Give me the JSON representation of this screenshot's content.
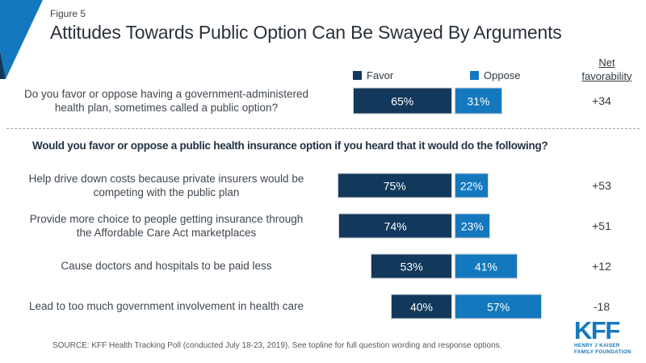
{
  "figure_label": "Figure 5",
  "title": "Attitudes Towards Public Option Can Be Swayed By Arguments",
  "legend": {
    "favor": "Favor",
    "oppose": "Oppose"
  },
  "net_header": {
    "line1": "Net",
    "line2": "favorability"
  },
  "section_heading": "Would you favor or oppose a public health insurance option if you heard that it would do the following?",
  "source": "SOURCE: KFF Health Tracking Poll (conducted July 18-23, 2019). See topline for full question wording and response options.",
  "logo": {
    "kff": "KFF",
    "line1": "HENRY J KAISER",
    "line2": "FAMILY FOUNDATION"
  },
  "colors": {
    "favor": "#12395c",
    "oppose": "#1478bf",
    "corner_accent": "#1478bf",
    "corner_accent_dark": "#12395c"
  },
  "chart_data": {
    "type": "bar",
    "orientation": "horizontal-stacked",
    "series_names": [
      "Favor",
      "Oppose"
    ],
    "value_unit": "percent",
    "axis_range": [
      0,
      100
    ],
    "grid": false,
    "legend_position": "top",
    "rows": [
      {
        "label": "Do you favor or oppose having a government-administered health plan, sometimes called a public option?",
        "favor": 65,
        "favor_label": "65%",
        "oppose": 31,
        "oppose_label": "31%",
        "net": "+34"
      },
      {
        "label": "Help drive down costs because private insurers would be competing with the public plan",
        "favor": 75,
        "favor_label": "75%",
        "oppose": 22,
        "oppose_label": "22%",
        "net": "+53"
      },
      {
        "label": "Provide more choice to people getting insurance through the Affordable Care Act marketplaces",
        "favor": 74,
        "favor_label": "74%",
        "oppose": 23,
        "oppose_label": "23%",
        "net": "+51"
      },
      {
        "label": "Cause doctors and hospitals to be paid less",
        "favor": 53,
        "favor_label": "53%",
        "oppose": 41,
        "oppose_label": "41%",
        "net": "+12"
      },
      {
        "label": "Lead to too much government involvement in health care",
        "favor": 40,
        "favor_label": "40%",
        "oppose": 57,
        "oppose_label": "57%",
        "net": "-18"
      }
    ]
  }
}
